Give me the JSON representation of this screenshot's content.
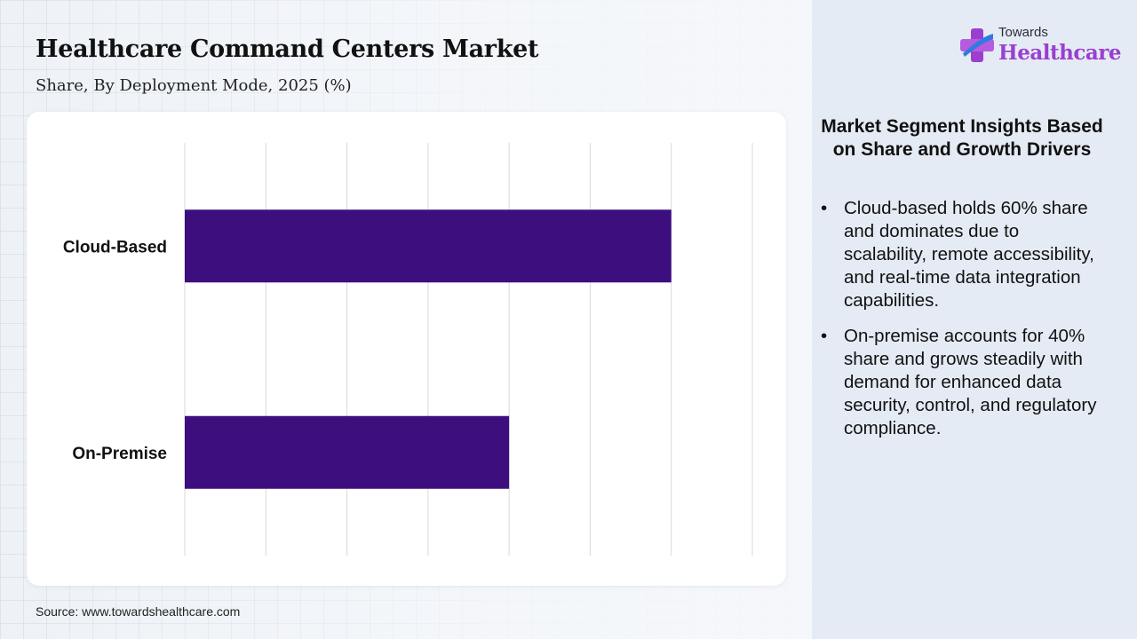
{
  "header": {
    "title": "Healthcare Command Centers Market",
    "subtitle": "Share, By Deployment Mode, 2025 (%)"
  },
  "chart_data": {
    "type": "bar",
    "orientation": "horizontal",
    "categories": [
      "Cloud-Based",
      "On-Premise"
    ],
    "values": [
      60,
      40
    ],
    "xlim": [
      0,
      70
    ],
    "grid": true,
    "bar_color": "#3d0f7e"
  },
  "source": "Source: www.towardshealthcare.com",
  "logo": {
    "small_text": "Towards",
    "big_text": "Healthcare",
    "colors": {
      "brand_purple": "#9a3fd0",
      "brand_blue": "#2f7be0"
    }
  },
  "insights": {
    "title": "Market Segment Insights Based on Share and Growth Drivers",
    "bullets": [
      "Cloud-based holds 60% share and dominates due to scalability, remote accessibility, and real-time data integration capabilities.",
      "On-premise accounts for 40% share and grows steadily with demand for enhanced data security, control, and regulatory compliance."
    ]
  }
}
